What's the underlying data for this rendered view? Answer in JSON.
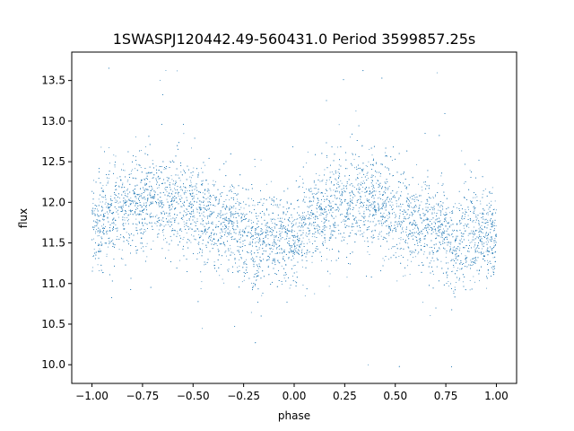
{
  "chart_data": {
    "type": "scatter",
    "title": "1SWASPJ120442.49-560431.0 Period 3599857.25s",
    "xlabel": "phase",
    "ylabel": "flux",
    "xlim": [
      -1.1,
      1.1
    ],
    "ylim": [
      9.77,
      13.85
    ],
    "xticks": [
      -1.0,
      -0.75,
      -0.5,
      -0.25,
      0.0,
      0.25,
      0.5,
      0.75,
      1.0
    ],
    "xtick_labels": [
      "−1.00",
      "−0.75",
      "−0.50",
      "−0.25",
      "0.00",
      "0.25",
      "0.50",
      "0.75",
      "1.00"
    ],
    "yticks": [
      10.0,
      10.5,
      11.0,
      11.5,
      12.0,
      12.5,
      13.0,
      13.5
    ],
    "ytick_labels": [
      "10.0",
      "10.5",
      "11.0",
      "11.5",
      "12.0",
      "12.5",
      "13.0",
      "13.5"
    ],
    "marker_color": "#1f77b4",
    "grid": false,
    "series": [
      {
        "points_description_note_excluded": null,
        "x_range": [
          -1.0,
          1.0
        ],
        "mean_curve": {
          "phase": [
            -1.0,
            -0.9,
            -0.8,
            -0.7,
            -0.6,
            -0.5,
            -0.4,
            -0.3,
            -0.2,
            -0.1,
            0.0,
            0.1,
            0.2,
            0.3,
            0.4,
            0.5,
            0.6,
            0.7,
            0.8,
            0.9,
            1.0
          ],
          "flux": [
            11.7,
            11.85,
            11.95,
            12.05,
            12.0,
            11.9,
            11.75,
            11.7,
            11.5,
            11.55,
            11.55,
            11.8,
            11.95,
            12.05,
            12.0,
            11.9,
            11.75,
            11.7,
            11.5,
            11.6,
            11.55
          ]
        },
        "scatter_sigma": 0.28,
        "n_points": 9000
      }
    ]
  }
}
